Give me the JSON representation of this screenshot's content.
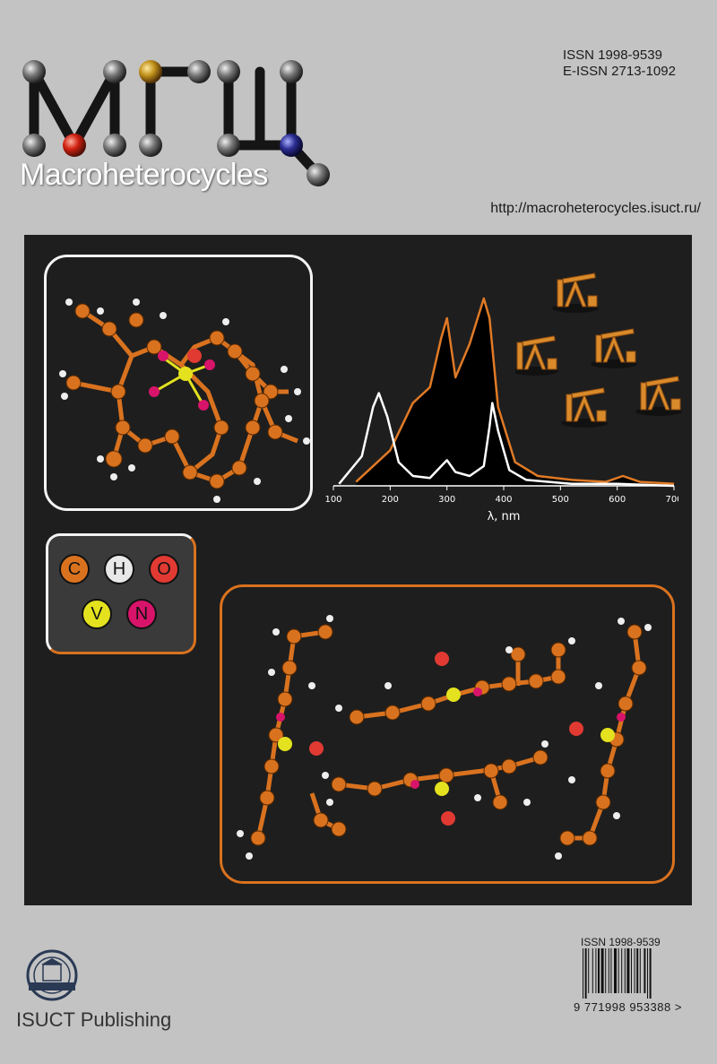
{
  "header": {
    "issn": "ISSN 1998-9539",
    "eissn": "E-ISSN 2713-1092",
    "journal_name": "Macroheterocycles",
    "url": "http://macroheterocycles.isuct.ru/"
  },
  "chart_data": {
    "type": "line",
    "title": "",
    "xlabel": "λ, nm",
    "ylabel": "",
    "xlim": [
      100,
      700
    ],
    "xticks": [
      100,
      200,
      300,
      400,
      500,
      600,
      700
    ],
    "series": [
      {
        "color": "#e07a26",
        "x": [
          140,
          200,
          240,
          270,
          290,
          300,
          315,
          340,
          365,
          375,
          390,
          420,
          460,
          520,
          580,
          610,
          640,
          700
        ],
        "y": [
          0.02,
          0.18,
          0.42,
          0.5,
          0.75,
          0.85,
          0.55,
          0.72,
          0.95,
          0.85,
          0.4,
          0.12,
          0.05,
          0.03,
          0.02,
          0.05,
          0.02,
          0.01
        ]
      },
      {
        "color": "#ffffff",
        "x": [
          110,
          150,
          170,
          180,
          195,
          215,
          240,
          270,
          290,
          300,
          315,
          340,
          365,
          375,
          380,
          390,
          410,
          440,
          480,
          520,
          600,
          700
        ],
        "y": [
          0.01,
          0.15,
          0.4,
          0.47,
          0.35,
          0.12,
          0.05,
          0.04,
          0.1,
          0.13,
          0.07,
          0.05,
          0.1,
          0.3,
          0.42,
          0.28,
          0.08,
          0.03,
          0.02,
          0.01,
          0.01,
          0.0
        ]
      }
    ]
  },
  "legend": {
    "atoms": [
      {
        "symbol": "C",
        "color": "#d9721f"
      },
      {
        "symbol": "H",
        "color": "#e8e8e8"
      },
      {
        "symbol": "O",
        "color": "#e03a33"
      },
      {
        "symbol": "V",
        "color": "#e4e21f"
      },
      {
        "symbol": "N",
        "color": "#d8146a"
      }
    ]
  },
  "footer": {
    "barcode_issn": "ISSN 1998-9539",
    "barcode_digits": "9 771998 953388 >",
    "publisher_a": "ISUCT",
    "publisher_b": " Publishing"
  },
  "icons": [
    "oil-pump-icon",
    "university-seal-icon",
    "barcode-icon"
  ]
}
